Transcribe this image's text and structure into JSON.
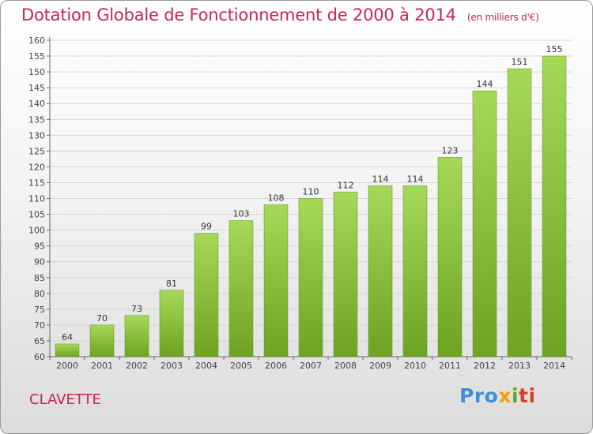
{
  "header": {
    "title": "Dotation Globale de Fonctionnement de 2000 à 2014",
    "subtitle": "(en milliers d'€)"
  },
  "footer": {
    "commune": "CLAVETTE",
    "logo": {
      "p1": "Pro",
      "p2": "x",
      "p3": "i",
      "p4": "ti"
    }
  },
  "colors": {
    "title": "#c8264d",
    "bar_top": "#a5d957",
    "bar_bottom": "#6ea322",
    "grid": "#d4d4d4"
  },
  "chart_data": {
    "type": "bar",
    "title": "Dotation Globale de Fonctionnement de 2000 à 2014",
    "subtitle": "(en milliers d'€)",
    "categories": [
      "2000",
      "2001",
      "2002",
      "2003",
      "2004",
      "2005",
      "2006",
      "2007",
      "2008",
      "2009",
      "2010",
      "2011",
      "2012",
      "2013",
      "2014"
    ],
    "values": [
      64,
      70,
      73,
      81,
      99,
      103,
      108,
      110,
      112,
      114,
      114,
      123,
      144,
      151,
      155
    ],
    "ylim": [
      60,
      160
    ],
    "yticks": [
      60,
      65,
      70,
      75,
      80,
      85,
      90,
      95,
      100,
      105,
      110,
      115,
      120,
      125,
      130,
      135,
      140,
      145,
      150,
      155,
      160
    ],
    "grid": true,
    "legend": "none"
  }
}
